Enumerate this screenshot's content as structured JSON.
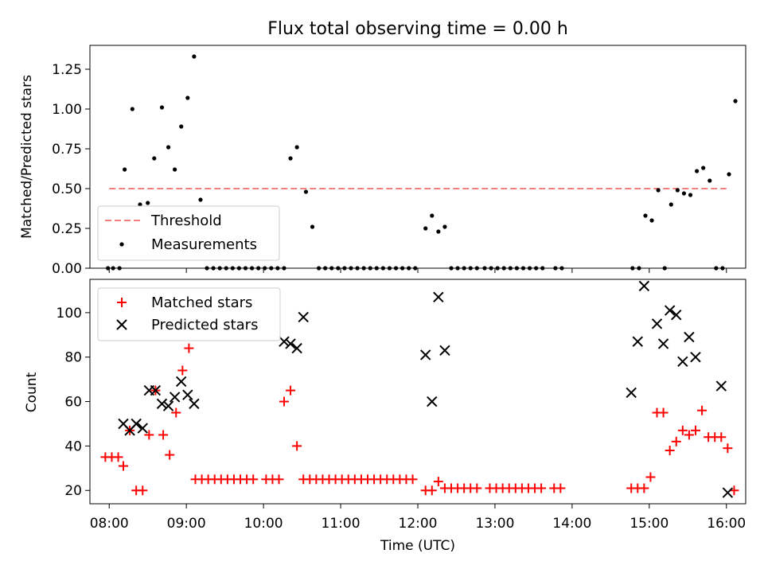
{
  "chart_data": [
    {
      "type": "scatter",
      "title": "Flux total observing time = 0.00 h",
      "xlabel": "",
      "ylabel": "Matched/Predicted stars",
      "ylim": [
        0,
        1.4
      ],
      "xlim": [
        "07:45",
        "16:15"
      ],
      "yticks": [
        "0.00",
        "0.25",
        "0.50",
        "0.75",
        "1.00",
        "1.25"
      ],
      "legend_placement": "lower-left",
      "threshold": {
        "name": "Threshold",
        "value": 0.5,
        "x_from": "08:00",
        "x_to": "16:00",
        "color": "#f08080"
      },
      "series": [
        {
          "name": "Measurements",
          "color": "#000000",
          "points": [
            [
              "07:59",
              0
            ],
            [
              "08:03",
              0
            ],
            [
              "08:08",
              0
            ],
            [
              "08:12",
              0.62
            ],
            [
              "08:18",
              1.0
            ],
            [
              "08:24",
              0.4
            ],
            [
              "08:30",
              0.41
            ],
            [
              "08:35",
              0.69
            ],
            [
              "08:41",
              1.01
            ],
            [
              "08:46",
              0.76
            ],
            [
              "08:51",
              0.62
            ],
            [
              "08:56",
              0.89
            ],
            [
              "09:01",
              1.07
            ],
            [
              "09:06",
              1.33
            ],
            [
              "09:11",
              0.43
            ],
            [
              "09:16",
              0
            ],
            [
              "09:21",
              0
            ],
            [
              "09:26",
              0
            ],
            [
              "09:31",
              0
            ],
            [
              "09:36",
              0
            ],
            [
              "09:41",
              0
            ],
            [
              "09:46",
              0
            ],
            [
              "09:51",
              0
            ],
            [
              "09:56",
              0
            ],
            [
              "10:01",
              0
            ],
            [
              "10:06",
              0
            ],
            [
              "10:11",
              0
            ],
            [
              "10:16",
              0
            ],
            [
              "10:21",
              0.69
            ],
            [
              "10:26",
              0.76
            ],
            [
              "10:33",
              0.48
            ],
            [
              "10:38",
              0.26
            ],
            [
              "10:43",
              0
            ],
            [
              "10:48",
              0
            ],
            [
              "10:53",
              0
            ],
            [
              "10:58",
              0
            ],
            [
              "11:03",
              0
            ],
            [
              "11:08",
              0
            ],
            [
              "11:13",
              0
            ],
            [
              "11:18",
              0
            ],
            [
              "11:23",
              0
            ],
            [
              "11:28",
              0
            ],
            [
              "11:33",
              0
            ],
            [
              "11:38",
              0
            ],
            [
              "11:43",
              0
            ],
            [
              "11:48",
              0
            ],
            [
              "11:53",
              0
            ],
            [
              "11:58",
              0
            ],
            [
              "12:06",
              0.25
            ],
            [
              "12:11",
              0.33
            ],
            [
              "12:16",
              0.23
            ],
            [
              "12:21",
              0.26
            ],
            [
              "12:26",
              0
            ],
            [
              "12:31",
              0
            ],
            [
              "12:36",
              0
            ],
            [
              "12:41",
              0
            ],
            [
              "12:46",
              0
            ],
            [
              "12:52",
              0
            ],
            [
              "12:57",
              0
            ],
            [
              "13:02",
              0
            ],
            [
              "13:07",
              0
            ],
            [
              "13:12",
              0
            ],
            [
              "13:17",
              0
            ],
            [
              "13:22",
              0
            ],
            [
              "13:27",
              0
            ],
            [
              "13:32",
              0
            ],
            [
              "13:37",
              0
            ],
            [
              "13:47",
              0
            ],
            [
              "13:52",
              0
            ],
            [
              "14:47",
              0
            ],
            [
              "14:52",
              0
            ],
            [
              "14:57",
              0.33
            ],
            [
              "15:02",
              0.3
            ],
            [
              "15:07",
              0.49
            ],
            [
              "15:12",
              0
            ],
            [
              "15:17",
              0.4
            ],
            [
              "15:22",
              0.49
            ],
            [
              "15:27",
              0.47
            ],
            [
              "15:32",
              0.46
            ],
            [
              "15:37",
              0.61
            ],
            [
              "15:42",
              0.63
            ],
            [
              "15:47",
              0.55
            ],
            [
              "15:52",
              0
            ],
            [
              "15:57",
              0
            ],
            [
              "16:02",
              0.59
            ],
            [
              "16:07",
              1.05
            ]
          ]
        }
      ]
    },
    {
      "type": "scatter",
      "title": "",
      "xlabel": "Time (UTC)",
      "ylabel": "Count",
      "ylim": [
        14,
        115
      ],
      "xlim": [
        "07:45",
        "16:15"
      ],
      "yticks": [
        "20",
        "40",
        "60",
        "80",
        "100"
      ],
      "xticks": [
        "08:00",
        "09:00",
        "10:00",
        "11:00",
        "12:00",
        "13:00",
        "14:00",
        "15:00",
        "16:00"
      ],
      "legend_placement": "upper-left",
      "series": [
        {
          "name": "Matched stars",
          "color": "#ff0000",
          "marker": "plus",
          "points": [
            [
              "07:57",
              35
            ],
            [
              "08:02",
              35
            ],
            [
              "08:07",
              35
            ],
            [
              "08:11",
              31
            ],
            [
              "08:16",
              47
            ],
            [
              "08:21",
              20
            ],
            [
              "08:26",
              20
            ],
            [
              "08:31",
              45
            ],
            [
              "08:36",
              65
            ],
            [
              "08:42",
              45
            ],
            [
              "08:47",
              36
            ],
            [
              "08:52",
              55
            ],
            [
              "08:57",
              74
            ],
            [
              "09:02",
              84
            ],
            [
              "09:07",
              25
            ],
            [
              "09:12",
              25
            ],
            [
              "09:17",
              25
            ],
            [
              "09:22",
              25
            ],
            [
              "09:27",
              25
            ],
            [
              "09:32",
              25
            ],
            [
              "09:37",
              25
            ],
            [
              "09:42",
              25
            ],
            [
              "09:47",
              25
            ],
            [
              "09:52",
              25
            ],
            [
              "10:02",
              25
            ],
            [
              "10:07",
              25
            ],
            [
              "10:12",
              25
            ],
            [
              "10:16",
              60
            ],
            [
              "10:21",
              65
            ],
            [
              "10:26",
              40
            ],
            [
              "10:31",
              25
            ],
            [
              "10:36",
              25
            ],
            [
              "10:41",
              25
            ],
            [
              "10:46",
              25
            ],
            [
              "10:51",
              25
            ],
            [
              "10:56",
              25
            ],
            [
              "11:01",
              25
            ],
            [
              "11:06",
              25
            ],
            [
              "11:11",
              25
            ],
            [
              "11:16",
              25
            ],
            [
              "11:21",
              25
            ],
            [
              "11:26",
              25
            ],
            [
              "11:31",
              25
            ],
            [
              "11:36",
              25
            ],
            [
              "11:41",
              25
            ],
            [
              "11:46",
              25
            ],
            [
              "11:51",
              25
            ],
            [
              "11:56",
              25
            ],
            [
              "12:06",
              20
            ],
            [
              "12:11",
              20
            ],
            [
              "12:16",
              24
            ],
            [
              "12:21",
              21
            ],
            [
              "12:26",
              21
            ],
            [
              "12:31",
              21
            ],
            [
              "12:36",
              21
            ],
            [
              "12:41",
              21
            ],
            [
              "12:46",
              21
            ],
            [
              "12:56",
              21
            ],
            [
              "13:01",
              21
            ],
            [
              "13:06",
              21
            ],
            [
              "13:11",
              21
            ],
            [
              "13:16",
              21
            ],
            [
              "13:21",
              21
            ],
            [
              "13:26",
              21
            ],
            [
              "13:31",
              21
            ],
            [
              "13:36",
              21
            ],
            [
              "13:46",
              21
            ],
            [
              "13:51",
              21
            ],
            [
              "14:46",
              21
            ],
            [
              "14:51",
              21
            ],
            [
              "14:56",
              21
            ],
            [
              "15:01",
              26
            ],
            [
              "15:06",
              55
            ],
            [
              "15:11",
              55
            ],
            [
              "15:16",
              38
            ],
            [
              "15:21",
              42
            ],
            [
              "15:26",
              47
            ],
            [
              "15:31",
              45
            ],
            [
              "15:36",
              47
            ],
            [
              "15:41",
              56
            ],
            [
              "15:46",
              44
            ],
            [
              "15:51",
              44
            ],
            [
              "15:56",
              44
            ],
            [
              "16:01",
              39
            ],
            [
              "16:06",
              20
            ]
          ]
        },
        {
          "name": "Predicted stars",
          "color": "#000000",
          "marker": "x",
          "points": [
            [
              "08:11",
              50
            ],
            [
              "08:16",
              47
            ],
            [
              "08:21",
              50
            ],
            [
              "08:26",
              48
            ],
            [
              "08:31",
              65
            ],
            [
              "08:36",
              65
            ],
            [
              "08:41",
              59
            ],
            [
              "08:46",
              58
            ],
            [
              "08:51",
              62
            ],
            [
              "08:56",
              69
            ],
            [
              "09:01",
              63
            ],
            [
              "09:06",
              59
            ],
            [
              "10:16",
              87
            ],
            [
              "10:21",
              86
            ],
            [
              "10:26",
              84
            ],
            [
              "10:31",
              98
            ],
            [
              "12:06",
              81
            ],
            [
              "12:11",
              60
            ],
            [
              "12:16",
              107
            ],
            [
              "12:21",
              83
            ],
            [
              "14:46",
              64
            ],
            [
              "14:51",
              87
            ],
            [
              "14:56",
              112
            ],
            [
              "15:06",
              95
            ],
            [
              "15:11",
              86
            ],
            [
              "15:16",
              101
            ],
            [
              "15:21",
              99
            ],
            [
              "15:26",
              78
            ],
            [
              "15:31",
              89
            ],
            [
              "15:36",
              80
            ],
            [
              "15:56",
              67
            ],
            [
              "16:01",
              19
            ]
          ]
        }
      ]
    }
  ]
}
